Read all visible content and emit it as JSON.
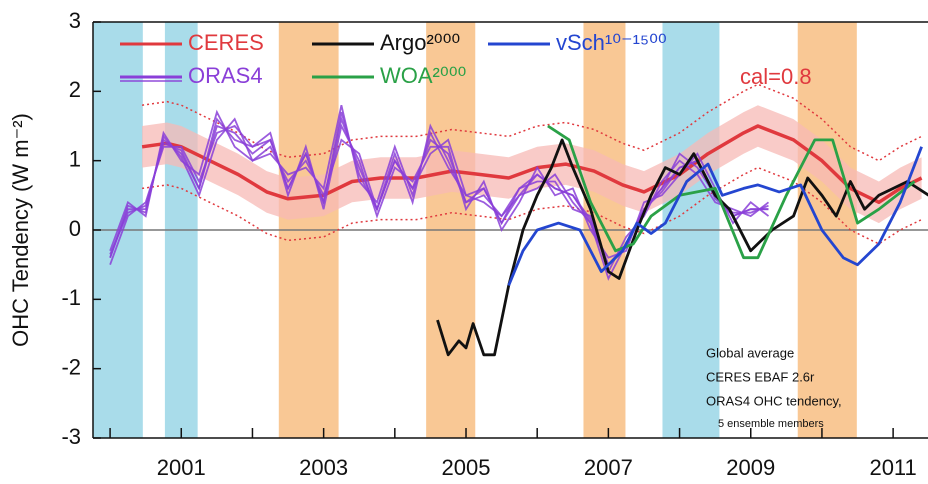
{
  "chart_data": {
    "type": "line",
    "ylabel": "OHC Tendency (W m⁻²)",
    "xlim": [
      1999.76,
      2011.49
    ],
    "ylim": [
      -3,
      3
    ],
    "xticks": [
      2001,
      2003,
      2005,
      2007,
      2009,
      2011
    ],
    "xminorticks": [
      2000,
      2002,
      2004,
      2006,
      2008,
      2010
    ],
    "yticks": [
      -3,
      -2,
      -1,
      0,
      1,
      2,
      3
    ],
    "zero_line": true,
    "bands": [
      {
        "from": 1999.76,
        "to": 2000.46,
        "color": "#a9dcea"
      },
      {
        "from": 2000.77,
        "to": 2001.23,
        "color": "#a9dcea"
      },
      {
        "from": 2007.76,
        "to": 2008.56,
        "color": "#a9dcea"
      },
      {
        "from": 2002.37,
        "to": 2003.21,
        "color": "#f9c895"
      },
      {
        "from": 2004.44,
        "to": 2005.13,
        "color": "#f9c895"
      },
      {
        "from": 2006.65,
        "to": 2007.24,
        "color": "#f9c895"
      },
      {
        "from": 2009.66,
        "to": 2010.49,
        "color": "#f9c895"
      }
    ],
    "series": [
      {
        "name": "CERES",
        "color": "#e0393e",
        "x": [
          2000.45,
          2000.8,
          2001,
          2001.4,
          2001.8,
          2002.2,
          2002.5,
          2003,
          2003.4,
          2003.8,
          2004.3,
          2004.8,
          2005.2,
          2005.6,
          2006,
          2006.4,
          2006.8,
          2007.2,
          2007.5,
          2008,
          2008.4,
          2008.9,
          2009.1,
          2009.6,
          2010,
          2010.4,
          2010.8,
          2011.1,
          2011.4
        ],
        "values": [
          1.2,
          1.25,
          1.2,
          1.0,
          0.8,
          0.55,
          0.45,
          0.5,
          0.7,
          0.75,
          0.75,
          0.85,
          0.8,
          0.75,
          0.9,
          0.95,
          0.85,
          0.65,
          0.55,
          0.8,
          1.1,
          1.4,
          1.5,
          1.3,
          1.0,
          0.6,
          0.4,
          0.6,
          0.75
        ],
        "band_color": "#f7b9b5",
        "band_lower": [
          0.9,
          0.95,
          0.9,
          0.7,
          0.5,
          0.25,
          0.15,
          0.2,
          0.4,
          0.45,
          0.45,
          0.55,
          0.5,
          0.45,
          0.6,
          0.65,
          0.55,
          0.35,
          0.25,
          0.5,
          0.8,
          1.1,
          1.2,
          1.0,
          0.7,
          0.3,
          0.1,
          0.3,
          0.45
        ],
        "band_upper": [
          1.5,
          1.55,
          1.5,
          1.3,
          1.1,
          0.85,
          0.75,
          0.8,
          1.0,
          1.05,
          1.05,
          1.15,
          1.1,
          1.05,
          1.2,
          1.25,
          1.15,
          0.95,
          0.85,
          1.1,
          1.4,
          1.7,
          1.8,
          1.6,
          1.3,
          0.9,
          0.7,
          0.9,
          1.05
        ],
        "dotted_lower": [
          0.6,
          0.65,
          0.6,
          0.4,
          0.2,
          -0.05,
          -0.15,
          -0.1,
          0.1,
          0.15,
          0.15,
          0.25,
          0.2,
          0.15,
          0.3,
          0.35,
          0.25,
          0.05,
          -0.05,
          0.2,
          0.5,
          0.8,
          0.9,
          0.7,
          0.4,
          0.0,
          -0.2,
          0.0,
          0.15
        ],
        "dotted_upper": [
          1.8,
          1.85,
          1.8,
          1.6,
          1.4,
          1.15,
          1.05,
          1.1,
          1.3,
          1.35,
          1.35,
          1.45,
          1.4,
          1.35,
          1.5,
          1.55,
          1.45,
          1.25,
          1.15,
          1.4,
          1.7,
          2.0,
          2.1,
          1.9,
          1.6,
          1.2,
          1.0,
          1.2,
          1.35
        ]
      },
      {
        "name": "ORAS4",
        "color": "#8a3fd8",
        "x": [
          2000,
          2000.25,
          2000.5,
          2000.75,
          2001,
          2001.25,
          2001.5,
          2001.75,
          2002,
          2002.25,
          2002.5,
          2002.75,
          2003,
          2003.25,
          2003.5,
          2003.75,
          2004,
          2004.25,
          2004.5,
          2004.75,
          2005,
          2005.25,
          2005.5,
          2005.75,
          2006,
          2006.25,
          2006.5,
          2006.75,
          2007,
          2007.25,
          2007.5,
          2007.75,
          2008,
          2008.25,
          2008.5,
          2008.75,
          2009,
          2009.25
        ],
        "members": [
          [
            -0.4,
            0.3,
            0.3,
            1.3,
            1.1,
            0.6,
            1.5,
            1.4,
            1.1,
            1.3,
            0.6,
            1.1,
            0.4,
            1.6,
            0.9,
            0.3,
            1.0,
            0.6,
            1.3,
            1.1,
            0.4,
            0.6,
            0.1,
            0.5,
            0.8,
            0.6,
            0.5,
            0.1,
            -0.5,
            -0.2,
            0.3,
            0.6,
            0.9,
            1.0,
            0.5,
            0.2,
            0.3,
            0.3
          ],
          [
            -0.3,
            0.4,
            0.2,
            1.4,
            1.0,
            0.8,
            1.7,
            1.2,
            1.0,
            1.1,
            0.8,
            0.9,
            0.6,
            1.8,
            0.7,
            0.4,
            1.2,
            0.5,
            1.4,
            0.9,
            0.5,
            0.4,
            0.2,
            0.6,
            0.7,
            0.7,
            0.3,
            0.2,
            -0.6,
            -0.1,
            0.2,
            0.7,
            1.0,
            0.8,
            0.4,
            0.3,
            0.2,
            0.4
          ],
          [
            -0.5,
            0.2,
            0.4,
            1.2,
            1.2,
            0.7,
            1.4,
            1.5,
            1.2,
            1.4,
            0.5,
            1.2,
            0.3,
            1.5,
            1.0,
            0.2,
            0.9,
            0.7,
            1.2,
            1.2,
            0.3,
            0.7,
            0.0,
            0.4,
            0.9,
            0.5,
            0.6,
            0.0,
            -0.4,
            -0.3,
            0.4,
            0.5,
            0.8,
            1.1,
            0.6,
            0.1,
            0.4,
            0.2
          ],
          [
            -0.4,
            0.35,
            0.25,
            1.35,
            1.05,
            0.5,
            1.3,
            1.6,
            1.0,
            1.2,
            0.7,
            1.0,
            0.5,
            1.3,
            1.1,
            0.3,
            1.1,
            0.4,
            1.5,
            1.0,
            0.4,
            0.5,
            0.2,
            0.5,
            0.6,
            0.8,
            0.4,
            0.1,
            -0.7,
            -0.2,
            0.3,
            0.6,
            1.1,
            0.9,
            0.5,
            0.2,
            0.3,
            0.3
          ],
          [
            -0.35,
            0.25,
            0.35,
            1.25,
            1.15,
            0.6,
            1.6,
            1.3,
            1.2,
            1.3,
            0.6,
            1.1,
            0.4,
            1.7,
            0.8,
            0.3,
            1.0,
            0.6,
            1.1,
            1.3,
            0.5,
            0.6,
            0.1,
            0.6,
            0.8,
            0.6,
            0.5,
            0.15,
            -0.5,
            -0.25,
            0.3,
            0.55,
            0.9,
            1.0,
            0.45,
            0.25,
            0.25,
            0.35
          ]
        ]
      },
      {
        "name": "Argo²⁰⁰⁰",
        "color": "#111111",
        "x": [
          2004.6,
          2004.75,
          2004.9,
          2005.0,
          2005.1,
          2005.25,
          2005.4,
          2005.6,
          2005.8,
          2006.0,
          2006.2,
          2006.35,
          2006.5,
          2006.75,
          2007.0,
          2007.15,
          2007.4,
          2007.6,
          2007.8,
          2008.0,
          2008.2,
          2008.5,
          2008.7,
          2009.0,
          2009.3,
          2009.6,
          2009.8,
          2010.0,
          2010.2,
          2010.4,
          2010.6,
          2010.8,
          2011.2,
          2011.5
        ],
        "values": [
          -1.3,
          -1.8,
          -1.6,
          -1.7,
          -1.35,
          -1.8,
          -1.8,
          -0.8,
          0.0,
          0.5,
          0.9,
          1.3,
          0.9,
          0.3,
          -0.6,
          -0.7,
          0.0,
          0.5,
          0.9,
          0.8,
          1.1,
          0.5,
          0.3,
          -0.3,
          0.0,
          0.2,
          0.75,
          0.5,
          0.2,
          0.7,
          0.3,
          0.5,
          0.7,
          0.5
        ]
      },
      {
        "name": "WOA²⁰⁰⁰",
        "color": "#2aa147",
        "x": [
          2006.15,
          2006.45,
          2006.75,
          2007.1,
          2007.35,
          2007.6,
          2008.0,
          2008.5,
          2008.9,
          2009.1,
          2009.5,
          2009.9,
          2010.15,
          2010.5,
          2010.8,
          2011.3
        ],
        "values": [
          1.5,
          1.3,
          0.4,
          -0.3,
          -0.2,
          0.2,
          0.5,
          0.6,
          -0.4,
          -0.4,
          0.5,
          1.3,
          1.3,
          0.1,
          0.3,
          0.7
        ]
      },
      {
        "name": "vSch¹⁰⁻¹⁵⁰⁰",
        "color": "#2446d0",
        "x": [
          2005.6,
          2005.8,
          2006.0,
          2006.3,
          2006.6,
          2006.9,
          2007.2,
          2007.4,
          2007.6,
          2007.8,
          2008.1,
          2008.4,
          2008.6,
          2008.9,
          2009.1,
          2009.4,
          2009.7,
          2010.0,
          2010.3,
          2010.5,
          2010.8,
          2011.1,
          2011.4
        ],
        "values": [
          -0.8,
          -0.3,
          0.0,
          0.1,
          0.0,
          -0.6,
          -0.3,
          0.1,
          -0.05,
          0.1,
          0.7,
          0.95,
          0.5,
          0.6,
          0.65,
          0.55,
          0.65,
          0.0,
          -0.4,
          -0.5,
          -0.2,
          0.4,
          1.2
        ]
      }
    ],
    "annotation": "cal=0.8",
    "note": [
      "Global average",
      "CERES EBAF 2.6r",
      "ORAS4 OHC tendency,",
      "5 ensemble members"
    ]
  }
}
